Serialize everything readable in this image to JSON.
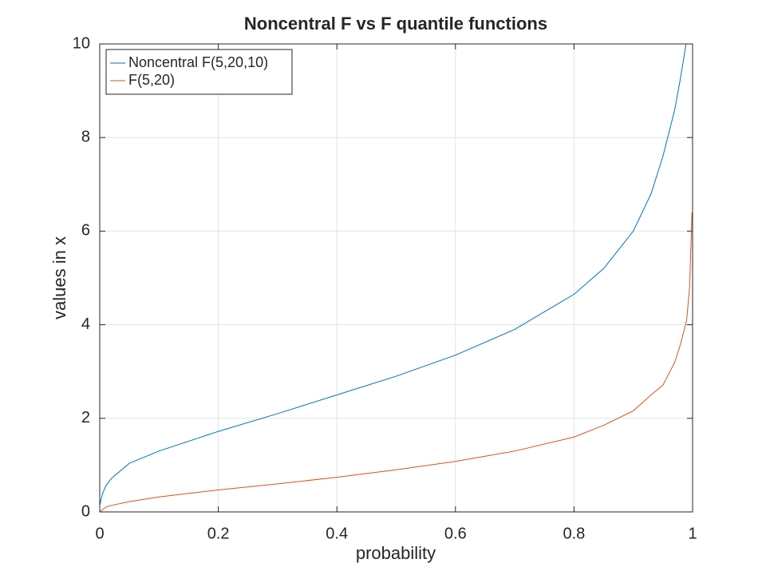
{
  "chart_data": {
    "type": "line",
    "title": "Noncentral F vs F quantile functions",
    "xlabel": "probability",
    "ylabel": "values in x",
    "xlim": [
      0,
      1
    ],
    "ylim": [
      0,
      10
    ],
    "xticks": [
      0,
      0.2,
      0.4,
      0.6,
      0.8,
      1
    ],
    "yticks": [
      0,
      2,
      4,
      6,
      8,
      10
    ],
    "grid": true,
    "legend": "northwest",
    "series": [
      {
        "name": "Noncentral F(5,20,10)",
        "color": "#0072bd",
        "x": [
          0,
          0.005,
          0.01,
          0.02,
          0.05,
          0.1,
          0.2,
          0.3,
          0.4,
          0.5,
          0.6,
          0.7,
          0.8,
          0.85,
          0.9,
          0.93,
          0.95,
          0.97,
          0.98,
          0.989
        ],
        "values": [
          0.15,
          0.4,
          0.55,
          0.72,
          1.04,
          1.3,
          1.72,
          2.1,
          2.5,
          2.9,
          3.35,
          3.9,
          4.65,
          5.2,
          6.0,
          6.8,
          7.6,
          8.6,
          9.3,
          10
        ]
      },
      {
        "name": "F(5,20)",
        "color": "#d95319",
        "x": [
          0,
          0.01,
          0.02,
          0.05,
          0.1,
          0.2,
          0.3,
          0.4,
          0.5,
          0.6,
          0.7,
          0.8,
          0.85,
          0.9,
          0.93,
          0.95,
          0.97,
          0.98,
          0.99,
          0.995,
          0.999
        ],
        "values": [
          0,
          0.1,
          0.14,
          0.22,
          0.32,
          0.47,
          0.6,
          0.74,
          0.9,
          1.08,
          1.3,
          1.6,
          1.85,
          2.16,
          2.5,
          2.71,
          3.2,
          3.6,
          4.1,
          4.8,
          6.4
        ]
      }
    ]
  }
}
